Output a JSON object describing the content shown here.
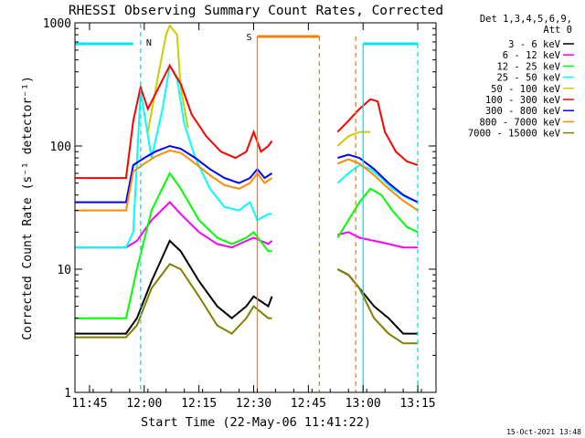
{
  "chart_data": {
    "type": "line",
    "title": "RHESSI Observing Summary Count Rates, Corrected",
    "xlabel": "Start Time (22-May-06 11:41:22)",
    "ylabel": "Corrected Count Rate (s⁻¹ detector⁻¹)",
    "y_scale": "log",
    "ylim": [
      1,
      1000
    ],
    "xlim_minutes_after_1141": [
      0,
      99
    ],
    "x_ticks": [
      "11:45",
      "12:00",
      "12:15",
      "12:30",
      "12:45",
      "13:00",
      "13:15"
    ],
    "y_ticks": [
      "1",
      "10",
      "100",
      "1000"
    ],
    "legend": {
      "placement": "top-right",
      "header": [
        "Det 1,3,4,5,6,9,",
        "Att 0"
      ]
    },
    "annotations": [
      "N",
      "S"
    ],
    "footer_timestamp": "15-Oct-2021 13:48",
    "series": [
      {
        "name": "3 - 6 keV",
        "color": "#000000",
        "points": [
          [
            "11:41",
            3
          ],
          [
            "11:55",
            3
          ],
          [
            "11:58",
            4
          ],
          [
            "12:02",
            8
          ],
          [
            "12:07",
            17
          ],
          [
            "12:10",
            14
          ],
          [
            "12:15",
            8
          ],
          [
            "12:20",
            5
          ],
          [
            "12:24",
            4
          ],
          [
            "12:28",
            5
          ],
          [
            "12:30",
            6
          ],
          [
            "12:34",
            5
          ],
          [
            "12:35",
            6
          ],
          [
            "12:53",
            10
          ],
          [
            "12:56",
            9
          ],
          [
            "12:59",
            7
          ],
          [
            "13:03",
            5
          ],
          [
            "13:07",
            4
          ],
          [
            "13:11",
            3
          ],
          [
            "13:15",
            3
          ]
        ]
      },
      {
        "name": "6 - 12 keV",
        "color": "#ff00ff",
        "points": [
          [
            "11:41",
            15
          ],
          [
            "11:55",
            15
          ],
          [
            "11:58",
            17
          ],
          [
            "12:02",
            25
          ],
          [
            "12:07",
            35
          ],
          [
            "12:10",
            28
          ],
          [
            "12:15",
            20
          ],
          [
            "12:20",
            16
          ],
          [
            "12:24",
            15
          ],
          [
            "12:28",
            17
          ],
          [
            "12:30",
            18
          ],
          [
            "12:34",
            16
          ],
          [
            "12:35",
            17
          ],
          [
            "12:53",
            19
          ],
          [
            "12:56",
            20
          ],
          [
            "12:59",
            18
          ],
          [
            "13:03",
            17
          ],
          [
            "13:07",
            16
          ],
          [
            "13:11",
            15
          ],
          [
            "13:15",
            15
          ]
        ]
      },
      {
        "name": "12 - 25 keV",
        "color": "#00ff00",
        "points": [
          [
            "11:41",
            4
          ],
          [
            "11:55",
            4
          ],
          [
            "11:58",
            10
          ],
          [
            "12:02",
            30
          ],
          [
            "12:07",
            60
          ],
          [
            "12:10",
            45
          ],
          [
            "12:15",
            25
          ],
          [
            "12:20",
            18
          ],
          [
            "12:24",
            16
          ],
          [
            "12:28",
            18
          ],
          [
            "12:30",
            20
          ],
          [
            "12:34",
            14
          ],
          [
            "12:35",
            14
          ],
          [
            "12:53",
            18
          ],
          [
            "12:56",
            25
          ],
          [
            "12:59",
            35
          ],
          [
            "13:02",
            45
          ],
          [
            "13:05",
            40
          ],
          [
            "13:08",
            30
          ],
          [
            "13:12",
            22
          ],
          [
            "13:15",
            20
          ]
        ]
      },
      {
        "name": "25 - 50 keV",
        "color": "#00ffff",
        "points": [
          [
            "11:41",
            15
          ],
          [
            "11:55",
            15
          ],
          [
            "11:57",
            20
          ],
          [
            "11:59",
            280
          ],
          [
            "12:02",
            80
          ],
          [
            "12:05",
            200
          ],
          [
            "12:07",
            450
          ],
          [
            "12:09",
            350
          ],
          [
            "12:11",
            150
          ],
          [
            "12:14",
            80
          ],
          [
            "12:18",
            45
          ],
          [
            "12:22",
            32
          ],
          [
            "12:26",
            30
          ],
          [
            "12:29",
            35
          ],
          [
            "12:31",
            25
          ],
          [
            "12:34",
            28
          ],
          [
            "12:35",
            28
          ],
          [
            "12:53",
            50
          ],
          [
            "12:56",
            60
          ],
          [
            "12:59",
            70
          ],
          [
            "13:02",
            65
          ],
          [
            "13:05",
            55
          ],
          [
            "13:08",
            45
          ],
          [
            "13:12",
            38
          ],
          [
            "13:15",
            35
          ]
        ]
      },
      {
        "name": "50 - 100 keV",
        "color": "#cccc00",
        "points": [
          [
            "12:01",
            130
          ],
          [
            "12:04",
            400
          ],
          [
            "12:06",
            800
          ],
          [
            "12:07",
            950
          ],
          [
            "12:09",
            800
          ],
          [
            "12:10",
            300
          ],
          [
            "12:12",
            140
          ],
          [
            "12:53",
            100
          ],
          [
            "12:56",
            120
          ],
          [
            "12:59",
            130
          ],
          [
            "13:02",
            130
          ]
        ]
      },
      {
        "name": "100 - 300 keV",
        "color": "#ff0000",
        "points": [
          [
            "11:41",
            55
          ],
          [
            "11:55",
            55
          ],
          [
            "11:57",
            160
          ],
          [
            "11:59",
            300
          ],
          [
            "12:01",
            200
          ],
          [
            "12:04",
            300
          ],
          [
            "12:07",
            450
          ],
          [
            "12:10",
            320
          ],
          [
            "12:13",
            180
          ],
          [
            "12:17",
            120
          ],
          [
            "12:21",
            90
          ],
          [
            "12:25",
            80
          ],
          [
            "12:28",
            90
          ],
          [
            "12:30",
            130
          ],
          [
            "12:32",
            90
          ],
          [
            "12:34",
            100
          ],
          [
            "12:35",
            110
          ],
          [
            "12:53",
            130
          ],
          [
            "12:56",
            160
          ],
          [
            "12:59",
            200
          ],
          [
            "13:02",
            240
          ],
          [
            "13:04",
            230
          ],
          [
            "13:06",
            130
          ],
          [
            "13:09",
            90
          ],
          [
            "13:12",
            75
          ],
          [
            "13:15",
            70
          ]
        ]
      },
      {
        "name": "300 - 800 keV",
        "color": "#0000ff",
        "points": [
          [
            "11:41",
            35
          ],
          [
            "11:55",
            35
          ],
          [
            "11:57",
            70
          ],
          [
            "12:00",
            80
          ],
          [
            "12:03",
            90
          ],
          [
            "12:07",
            100
          ],
          [
            "12:10",
            95
          ],
          [
            "12:14",
            80
          ],
          [
            "12:18",
            65
          ],
          [
            "12:22",
            55
          ],
          [
            "12:26",
            50
          ],
          [
            "12:29",
            55
          ],
          [
            "12:31",
            65
          ],
          [
            "12:33",
            55
          ],
          [
            "12:35",
            60
          ],
          [
            "12:53",
            80
          ],
          [
            "12:56",
            85
          ],
          [
            "12:59",
            80
          ],
          [
            "13:03",
            65
          ],
          [
            "13:07",
            50
          ],
          [
            "13:11",
            40
          ],
          [
            "13:15",
            35
          ]
        ]
      },
      {
        "name": "800 - 7000 keV",
        "color": "#ff8c00",
        "points": [
          [
            "11:41",
            30
          ],
          [
            "11:55",
            30
          ],
          [
            "11:57",
            62
          ],
          [
            "12:00",
            72
          ],
          [
            "12:03",
            82
          ],
          [
            "12:07",
            92
          ],
          [
            "12:10",
            88
          ],
          [
            "12:14",
            72
          ],
          [
            "12:18",
            58
          ],
          [
            "12:22",
            48
          ],
          [
            "12:26",
            45
          ],
          [
            "12:29",
            50
          ],
          [
            "12:31",
            60
          ],
          [
            "12:33",
            50
          ],
          [
            "12:35",
            55
          ],
          [
            "12:53",
            72
          ],
          [
            "12:56",
            78
          ],
          [
            "12:59",
            72
          ],
          [
            "13:03",
            58
          ],
          [
            "13:07",
            45
          ],
          [
            "13:11",
            36
          ],
          [
            "13:15",
            30
          ]
        ]
      },
      {
        "name": "7000 - 15000 keV",
        "color": "#808000",
        "points": [
          [
            "11:41",
            2.8
          ],
          [
            "11:55",
            2.8
          ],
          [
            "11:58",
            3.5
          ],
          [
            "12:02",
            7
          ],
          [
            "12:07",
            11
          ],
          [
            "12:10",
            10
          ],
          [
            "12:15",
            6
          ],
          [
            "12:20",
            3.5
          ],
          [
            "12:24",
            3
          ],
          [
            "12:28",
            4
          ],
          [
            "12:30",
            5
          ],
          [
            "12:34",
            4
          ],
          [
            "12:35",
            4
          ],
          [
            "12:53",
            10
          ],
          [
            "12:56",
            9
          ],
          [
            "12:59",
            7
          ],
          [
            "13:03",
            4
          ],
          [
            "13:07",
            3
          ],
          [
            "13:11",
            2.5
          ],
          [
            "13:15",
            2.5
          ]
        ]
      }
    ]
  }
}
